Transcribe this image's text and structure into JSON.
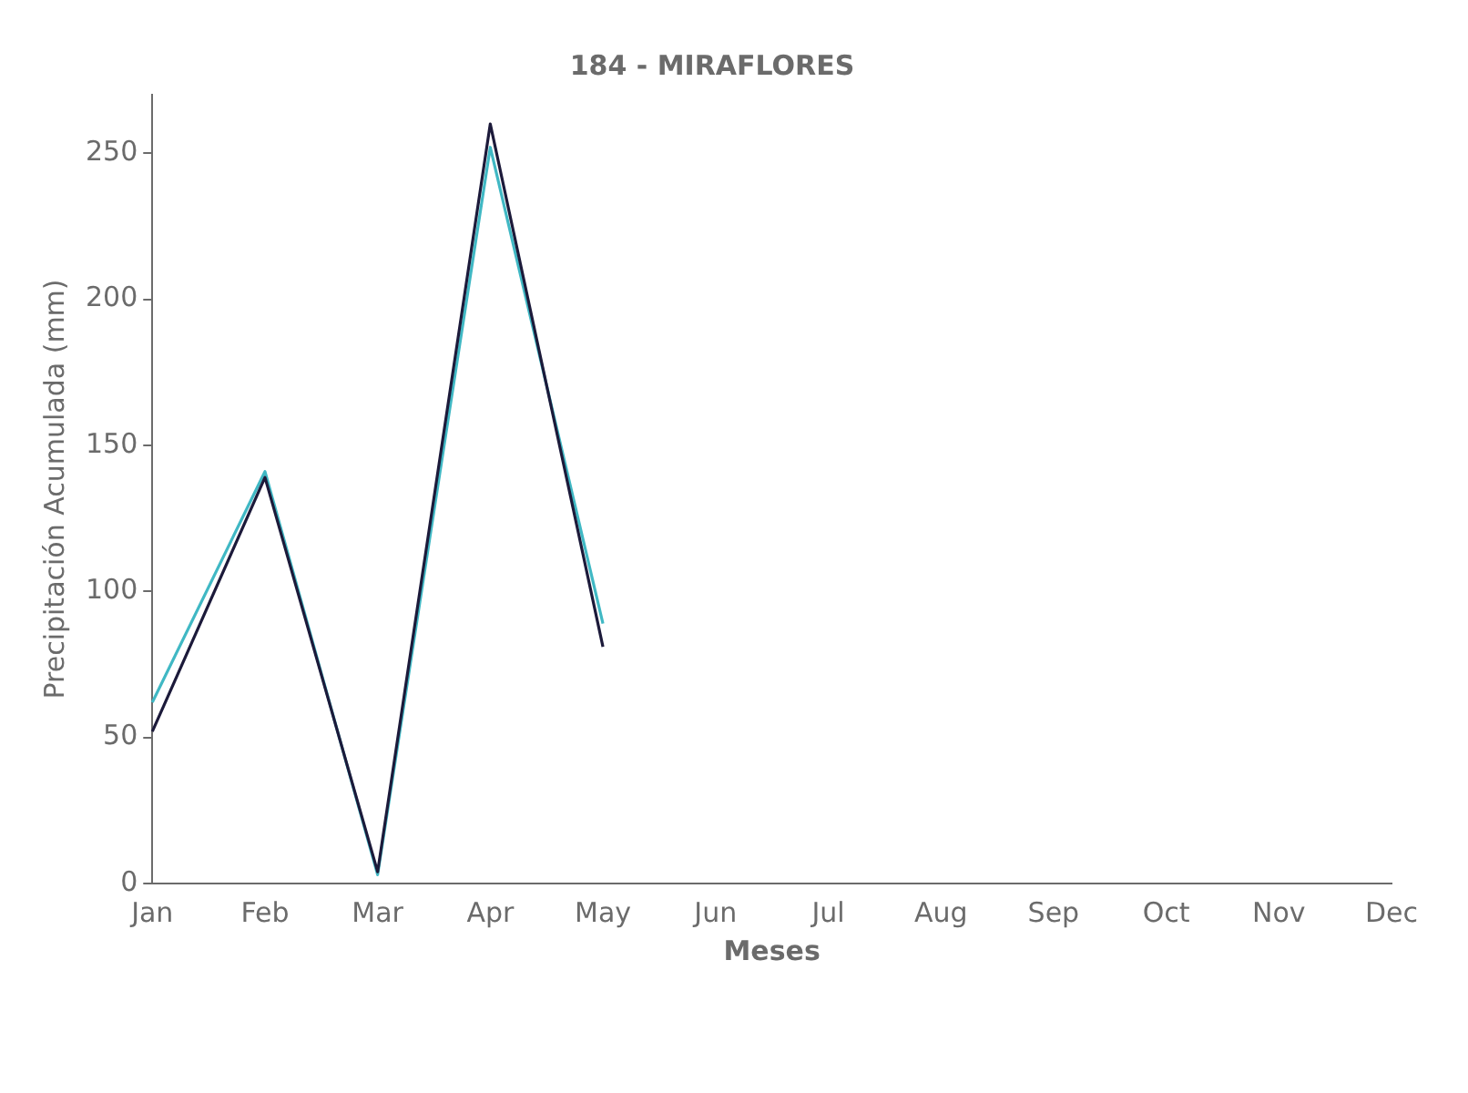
{
  "chart_data": {
    "type": "line",
    "title": "184 - MIRAFLORES",
    "xlabel": "Meses",
    "ylabel": "Precipitación Acumulada (mm)",
    "categories": [
      "Jan",
      "Feb",
      "Mar",
      "Apr",
      "May",
      "Jun",
      "Jul",
      "Aug",
      "Sep",
      "Oct",
      "Nov",
      "Dec"
    ],
    "series": [
      {
        "color": "#1c1a3a",
        "values": [
          52,
          139,
          4,
          260,
          81,
          null,
          null,
          null,
          null,
          null,
          null,
          null
        ]
      },
      {
        "color": "#40b8c4",
        "values": [
          62,
          141,
          3,
          252,
          89,
          null,
          null,
          null,
          null,
          null,
          null,
          null
        ]
      }
    ],
    "ylim": [
      0,
      270
    ],
    "yticks": [
      0,
      50,
      100,
      150,
      200,
      250
    ],
    "grid": false,
    "legend": false
  }
}
